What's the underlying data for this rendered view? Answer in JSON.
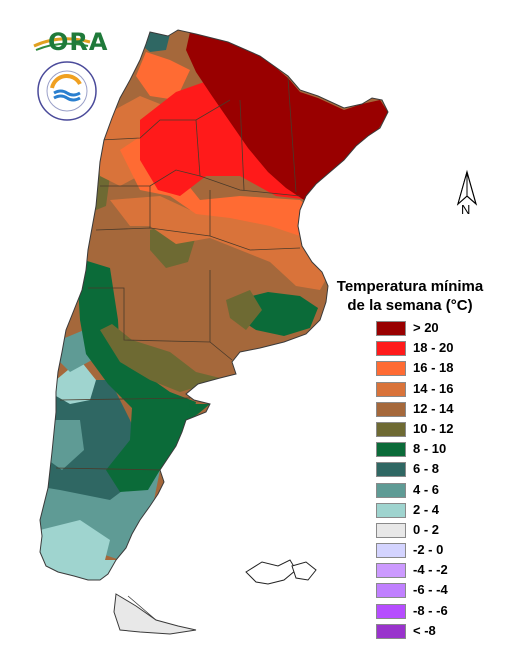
{
  "logo": {
    "name": "ORA"
  },
  "legend": {
    "title_line1": "Temperatura mínima",
    "title_line2": "de la semana (°C)",
    "items": [
      {
        "label": "> 20",
        "color": "#990000"
      },
      {
        "label": "18 - 20",
        "color": "#ff1a1a"
      },
      {
        "label": "16 - 18",
        "color": "#ff6b33"
      },
      {
        "label": "14 - 16",
        "color": "#d9733a"
      },
      {
        "label": "12 - 14",
        "color": "#a5683b"
      },
      {
        "label": "10 - 12",
        "color": "#6e6a33"
      },
      {
        "label": "8 - 10",
        "color": "#0b6b39"
      },
      {
        "label": "6 - 8",
        "color": "#2f6763"
      },
      {
        "label": "4 - 6",
        "color": "#5f9b95"
      },
      {
        "label": "2 - 4",
        "color": "#9fd4cf"
      },
      {
        "label": "0 - 2",
        "color": "#e8e8e8"
      },
      {
        "label": "-2 - 0",
        "color": "#d4d4ff"
      },
      {
        "label": "-4 - -2",
        "color": "#cc9aff"
      },
      {
        "label": "-6 - -4",
        "color": "#c080ff"
      },
      {
        "label": "-8 - -6",
        "color": "#b64dff"
      },
      {
        "label": "< -8",
        "color": "#9933cc"
      }
    ]
  },
  "north_arrow": {
    "label": "N"
  }
}
